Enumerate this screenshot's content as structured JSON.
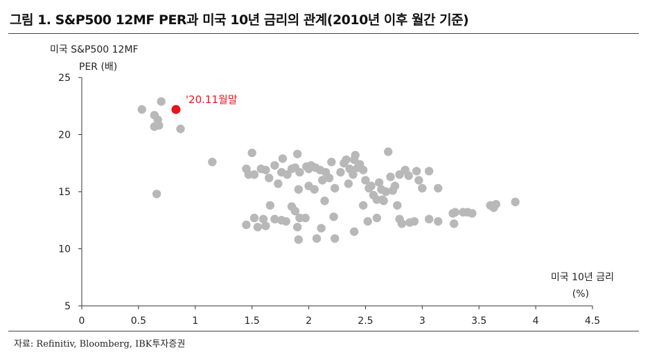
{
  "title": "그림 1. S&P500 12MF PER과 미국 10년 금리의 관계(2010년 이후 월간 기준)",
  "source": "자료: Refinitiv, Bloomberg, IBK투자증권",
  "colors": {
    "points": "#b8b8b8",
    "highlight": "#e8141a",
    "axis": "#333333",
    "text": "#222222"
  },
  "chart_data": {
    "type": "scatter",
    "title": "그림 1. S&P500 12MF PER과 미국 10년 금리의 관계(2010년 이후 월간 기준)",
    "ylabel_line1": "미국 S&P500 12MF",
    "ylabel_line2": "PER (배)",
    "xlabel_line1": "미국 10년 금리",
    "xlabel_line2": "(%)",
    "xlim": [
      0,
      4.5
    ],
    "ylim": [
      5,
      25
    ],
    "xticks": [
      "0",
      "0.5",
      "1",
      "1.5",
      "2",
      "2.5",
      "3",
      "3.5",
      "4",
      "4.5"
    ],
    "yticks": [
      "5",
      "10",
      "15",
      "20",
      "25"
    ],
    "grid": false,
    "annotation": {
      "label": "'20.11월말",
      "x": 0.83,
      "y": 22.2
    },
    "points": [
      [
        0.53,
        22.2
      ],
      [
        0.64,
        21.7
      ],
      [
        0.67,
        21.3
      ],
      [
        0.7,
        22.9
      ],
      [
        0.64,
        20.7
      ],
      [
        0.68,
        20.8
      ],
      [
        0.87,
        20.5
      ],
      [
        0.66,
        14.8
      ],
      [
        1.15,
        17.6
      ],
      [
        1.45,
        17.0
      ],
      [
        1.47,
        16.5
      ],
      [
        1.52,
        16.5
      ],
      [
        1.5,
        18.4
      ],
      [
        1.58,
        17.0
      ],
      [
        1.62,
        16.9
      ],
      [
        1.65,
        16.2
      ],
      [
        1.7,
        17.3
      ],
      [
        1.73,
        15.7
      ],
      [
        1.76,
        16.7
      ],
      [
        1.77,
        17.9
      ],
      [
        1.81,
        16.5
      ],
      [
        1.85,
        17.0
      ],
      [
        1.88,
        17.1
      ],
      [
        1.9,
        18.3
      ],
      [
        1.92,
        16.7
      ],
      [
        1.98,
        17.2
      ],
      [
        2.0,
        17.0
      ],
      [
        2.02,
        17.3
      ],
      [
        2.06,
        17.1
      ],
      [
        2.1,
        16.9
      ],
      [
        1.91,
        15.2
      ],
      [
        2.0,
        15.5
      ],
      [
        2.05,
        15.2
      ],
      [
        2.12,
        16.0
      ],
      [
        2.15,
        16.7
      ],
      [
        2.18,
        16.2
      ],
      [
        2.2,
        17.6
      ],
      [
        2.23,
        15.3
      ],
      [
        2.28,
        16.7
      ],
      [
        2.31,
        17.5
      ],
      [
        2.33,
        17.8
      ],
      [
        2.35,
        15.7
      ],
      [
        2.36,
        17.0
      ],
      [
        2.39,
        16.5
      ],
      [
        2.4,
        17.8
      ],
      [
        2.41,
        18.2
      ],
      [
        2.43,
        17.1
      ],
      [
        2.45,
        17.4
      ],
      [
        2.48,
        16.9
      ],
      [
        2.5,
        16.0
      ],
      [
        2.53,
        15.3
      ],
      [
        2.55,
        15.5
      ],
      [
        2.57,
        14.7
      ],
      [
        2.6,
        14.3
      ],
      [
        2.62,
        15.8
      ],
      [
        2.64,
        15.2
      ],
      [
        2.66,
        14.2
      ],
      [
        2.68,
        15.0
      ],
      [
        2.7,
        18.5
      ],
      [
        2.72,
        16.3
      ],
      [
        2.74,
        15.1
      ],
      [
        2.76,
        15.5
      ],
      [
        2.8,
        16.5
      ],
      [
        2.85,
        16.9
      ],
      [
        2.88,
        16.4
      ],
      [
        2.95,
        16.8
      ],
      [
        2.97,
        16.0
      ],
      [
        3.0,
        15.3
      ],
      [
        3.06,
        16.8
      ],
      [
        3.14,
        15.3
      ],
      [
        1.45,
        12.1
      ],
      [
        1.52,
        12.7
      ],
      [
        1.55,
        11.9
      ],
      [
        1.6,
        12.6
      ],
      [
        1.62,
        12.0
      ],
      [
        1.66,
        13.8
      ],
      [
        1.7,
        12.6
      ],
      [
        1.76,
        12.5
      ],
      [
        1.8,
        12.4
      ],
      [
        1.85,
        13.7
      ],
      [
        1.88,
        13.3
      ],
      [
        1.91,
        10.8
      ],
      [
        1.92,
        12.7
      ],
      [
        1.97,
        12.7
      ],
      [
        1.9,
        11.9
      ],
      [
        2.07,
        10.9
      ],
      [
        2.11,
        11.8
      ],
      [
        2.14,
        14.2
      ],
      [
        2.22,
        12.8
      ],
      [
        2.23,
        10.9
      ],
      [
        2.4,
        11.5
      ],
      [
        2.48,
        13.8
      ],
      [
        2.52,
        12.4
      ],
      [
        2.6,
        12.7
      ],
      [
        2.65,
        14.3
      ],
      [
        2.78,
        13.8
      ],
      [
        2.8,
        12.6
      ],
      [
        2.82,
        12.2
      ],
      [
        2.89,
        12.3
      ],
      [
        2.93,
        12.4
      ],
      [
        3.06,
        12.6
      ],
      [
        3.14,
        12.4
      ],
      [
        3.27,
        13.1
      ],
      [
        3.29,
        13.2
      ],
      [
        3.28,
        12.2
      ],
      [
        3.36,
        13.2
      ],
      [
        3.4,
        13.2
      ],
      [
        3.44,
        13.1
      ],
      [
        3.6,
        13.8
      ],
      [
        3.63,
        13.6
      ],
      [
        3.65,
        13.9
      ],
      [
        3.82,
        14.1
      ]
    ]
  }
}
